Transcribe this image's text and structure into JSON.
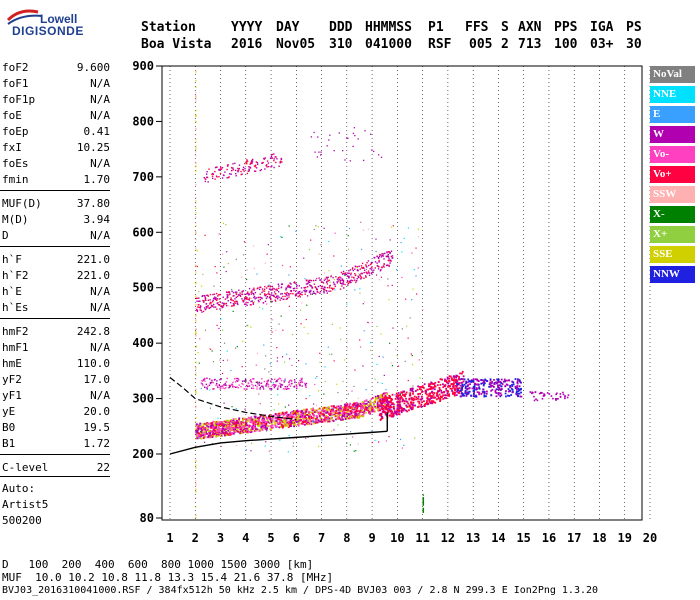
{
  "logo": {
    "brand_top": "Lowell",
    "brand_main": "DIGISONDE"
  },
  "header": {
    "labels": [
      "Station",
      "YYYY",
      "DAY",
      "DDD",
      "HHMMSS",
      "P1",
      "FFS",
      "S",
      "AXN",
      "PPS",
      "IGA",
      "PS"
    ],
    "values": [
      "Boa Vista",
      "2016",
      "Nov05",
      "310",
      "041000",
      "RSF",
      "005",
      "2",
      "713",
      "100",
      "03+",
      "30"
    ]
  },
  "params": [
    {
      "name": "foF2",
      "value": "9.600"
    },
    {
      "name": "foF1",
      "value": "N/A"
    },
    {
      "name": "foF1p",
      "value": "N/A"
    },
    {
      "name": "foE",
      "value": "N/A"
    },
    {
      "name": "foEp",
      "value": "0.41"
    },
    {
      "name": "fxI",
      "value": "10.25"
    },
    {
      "name": "foEs",
      "value": "N/A"
    },
    {
      "name": "fmin",
      "value": "1.70"
    },
    {
      "name": "MUF(D)",
      "value": "37.80"
    },
    {
      "name": "M(D)",
      "value": "3.94"
    },
    {
      "name": "D",
      "value": "N/A"
    },
    {
      "name": "h`F",
      "value": "221.0"
    },
    {
      "name": "h`F2",
      "value": "221.0"
    },
    {
      "name": "h`E",
      "value": "N/A"
    },
    {
      "name": "h`Es",
      "value": "N/A"
    },
    {
      "name": "hmF2",
      "value": "242.8"
    },
    {
      "name": "hmF1",
      "value": "N/A"
    },
    {
      "name": "hmE",
      "value": "110.0"
    },
    {
      "name": "yF2",
      "value": "17.0"
    },
    {
      "name": "yF1",
      "value": "N/A"
    },
    {
      "name": "yE",
      "value": "20.0"
    },
    {
      "name": "B0",
      "value": "19.5"
    },
    {
      "name": "B1",
      "value": "1.72"
    },
    {
      "name": "C-level",
      "value": "22"
    }
  ],
  "autoscale": {
    "line1": "Auto:",
    "line2": "Artist5",
    "line3": "500200"
  },
  "legend": [
    {
      "label": "NoVal",
      "color": "#808080",
      "text": "#ffffff"
    },
    {
      "label": "NNE",
      "color": "#00e0ff",
      "text": "#ffffff"
    },
    {
      "label": "E",
      "color": "#3aa0ff",
      "text": "#ffffff"
    },
    {
      "label": "W",
      "color": "#b000b0",
      "text": "#ffffff"
    },
    {
      "label": "Vo-",
      "color": "#ff40c0",
      "text": "#ffffff"
    },
    {
      "label": "Vo+",
      "color": "#ff0040",
      "text": "#ffffff"
    },
    {
      "label": "SSW",
      "color": "#ffb0b0",
      "text": "#ffffff"
    },
    {
      "label": "X-",
      "color": "#008000",
      "text": "#ffffff"
    },
    {
      "label": "X+",
      "color": "#90d040",
      "text": "#ffffff"
    },
    {
      "label": "SSE",
      "color": "#d0d000",
      "text": "#ffffff"
    },
    {
      "label": "NNW",
      "color": "#2020e0",
      "text": "#ffffff"
    }
  ],
  "chart_data": {
    "type": "scatter",
    "xticks": [
      "1",
      "2",
      "3",
      "4",
      "5",
      "6",
      "7",
      "8",
      "9",
      "10",
      "11",
      "12",
      "13",
      "14",
      "15",
      "16",
      "17",
      "18",
      "19",
      "20"
    ],
    "yticks": [
      "80",
      "200",
      "300",
      "400",
      "500",
      "600",
      "700",
      "800",
      "900"
    ],
    "xlim": [
      1,
      20
    ],
    "ylim": [
      80,
      900
    ],
    "profile_curve": {
      "x": [
        1.0,
        2.0,
        3.0,
        4.0,
        5.0,
        6.0,
        7.0,
        8.0,
        9.0,
        9.6
      ],
      "y": [
        200,
        212,
        220,
        224,
        227,
        230,
        233,
        236,
        239,
        241
      ]
    },
    "muf_curve": {
      "x": [
        1.0,
        1.5,
        2.0,
        3.0,
        4.0,
        5.0,
        6.0
      ],
      "y": [
        338,
        320,
        300,
        285,
        275,
        268,
        262
      ]
    }
  },
  "footer": {
    "d_label": "D",
    "d_values": "100  200  400  600  800 1000 1500 3000 [km]",
    "muf_label": "MUF",
    "muf_values": "10.0 10.2 10.8 11.8 13.3 15.4 21.6 37.8 [MHz]",
    "status": "BVJ03_2016310041000.RSF / 384fx512h 50 kHz 2.5 km / DPS-4D BVJ03 003 / 2.8 N 299.3 E Ion2Png 1.3.20"
  }
}
